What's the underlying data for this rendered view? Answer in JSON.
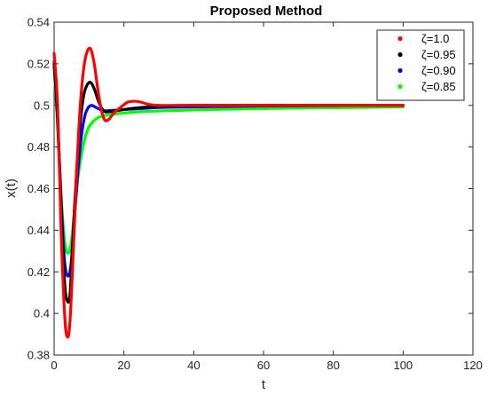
{
  "chart_data": {
    "type": "line",
    "title": "Proposed Method",
    "xlabel": "t",
    "ylabel": "x(t)",
    "xlim": [
      0,
      120
    ],
    "ylim": [
      0.38,
      0.54
    ],
    "xticks": [
      "0",
      "20",
      "40",
      "60",
      "80",
      "100",
      "120"
    ],
    "yticks": [
      "0.38",
      "0.4",
      "0.42",
      "0.44",
      "0.46",
      "0.48",
      "0.5",
      "0.52",
      "0.54"
    ],
    "legend_position": "top-right",
    "grid": false,
    "series": [
      {
        "name": "ζ=1.0",
        "color": "#ff0000",
        "x": [
          0,
          1,
          2,
          3,
          3.7,
          4.5,
          5.5,
          6.5,
          7.5,
          8.5,
          9.5,
          10.5,
          11.5,
          12.5,
          13.5,
          14.5,
          15.5,
          16.5,
          17.5,
          19,
          21,
          23,
          25,
          27,
          30,
          35,
          40,
          60,
          80,
          100
        ],
        "y": [
          0.525,
          0.5,
          0.44,
          0.4,
          0.389,
          0.395,
          0.43,
          0.47,
          0.5,
          0.518,
          0.526,
          0.527,
          0.52,
          0.508,
          0.498,
          0.493,
          0.493,
          0.495,
          0.497,
          0.499,
          0.5015,
          0.502,
          0.5015,
          0.5005,
          0.5,
          0.5,
          0.5,
          0.5,
          0.5,
          0.5
        ]
      },
      {
        "name": "ζ=0.95",
        "color": "#000000",
        "x": [
          0,
          1,
          2,
          3,
          3.8,
          4.6,
          5.5,
          6.5,
          7.5,
          8.5,
          9.5,
          10.5,
          11.5,
          12.5,
          13.5,
          14.5,
          16,
          18,
          20,
          22,
          25,
          30,
          40,
          60,
          80,
          100
        ],
        "y": [
          0.52,
          0.495,
          0.45,
          0.415,
          0.406,
          0.41,
          0.44,
          0.47,
          0.492,
          0.505,
          0.51,
          0.511,
          0.508,
          0.503,
          0.499,
          0.497,
          0.497,
          0.4975,
          0.498,
          0.4985,
          0.499,
          0.4995,
          0.5,
          0.5,
          0.5,
          0.5
        ]
      },
      {
        "name": "ζ=0.90",
        "color": "#0000ff",
        "x": [
          0,
          1,
          2,
          3,
          3.9,
          4.8,
          5.8,
          6.8,
          7.8,
          8.8,
          9.8,
          10.8,
          12,
          14,
          16,
          18,
          20,
          25,
          30,
          40,
          50,
          60,
          80,
          100
        ],
        "y": [
          0.521,
          0.493,
          0.455,
          0.425,
          0.418,
          0.423,
          0.445,
          0.468,
          0.485,
          0.495,
          0.499,
          0.5,
          0.499,
          0.4975,
          0.4975,
          0.4978,
          0.498,
          0.4985,
          0.499,
          0.4993,
          0.4995,
          0.4997,
          0.4999,
          0.5
        ]
      },
      {
        "name": "ζ=0.85",
        "color": "#00ff00",
        "x": [
          0,
          1,
          2,
          3,
          3.9,
          4.8,
          5.8,
          6.8,
          7.8,
          8.8,
          9.8,
          11,
          12.5,
          14,
          16,
          18,
          20,
          25,
          30,
          40,
          50,
          60,
          70,
          80,
          90,
          100
        ],
        "y": [
          0.518,
          0.49,
          0.457,
          0.435,
          0.429,
          0.433,
          0.448,
          0.465,
          0.476,
          0.484,
          0.489,
          0.492,
          0.494,
          0.495,
          0.4955,
          0.496,
          0.4963,
          0.497,
          0.4973,
          0.4978,
          0.4982,
          0.4985,
          0.4987,
          0.4989,
          0.4991,
          0.4993
        ]
      }
    ]
  }
}
